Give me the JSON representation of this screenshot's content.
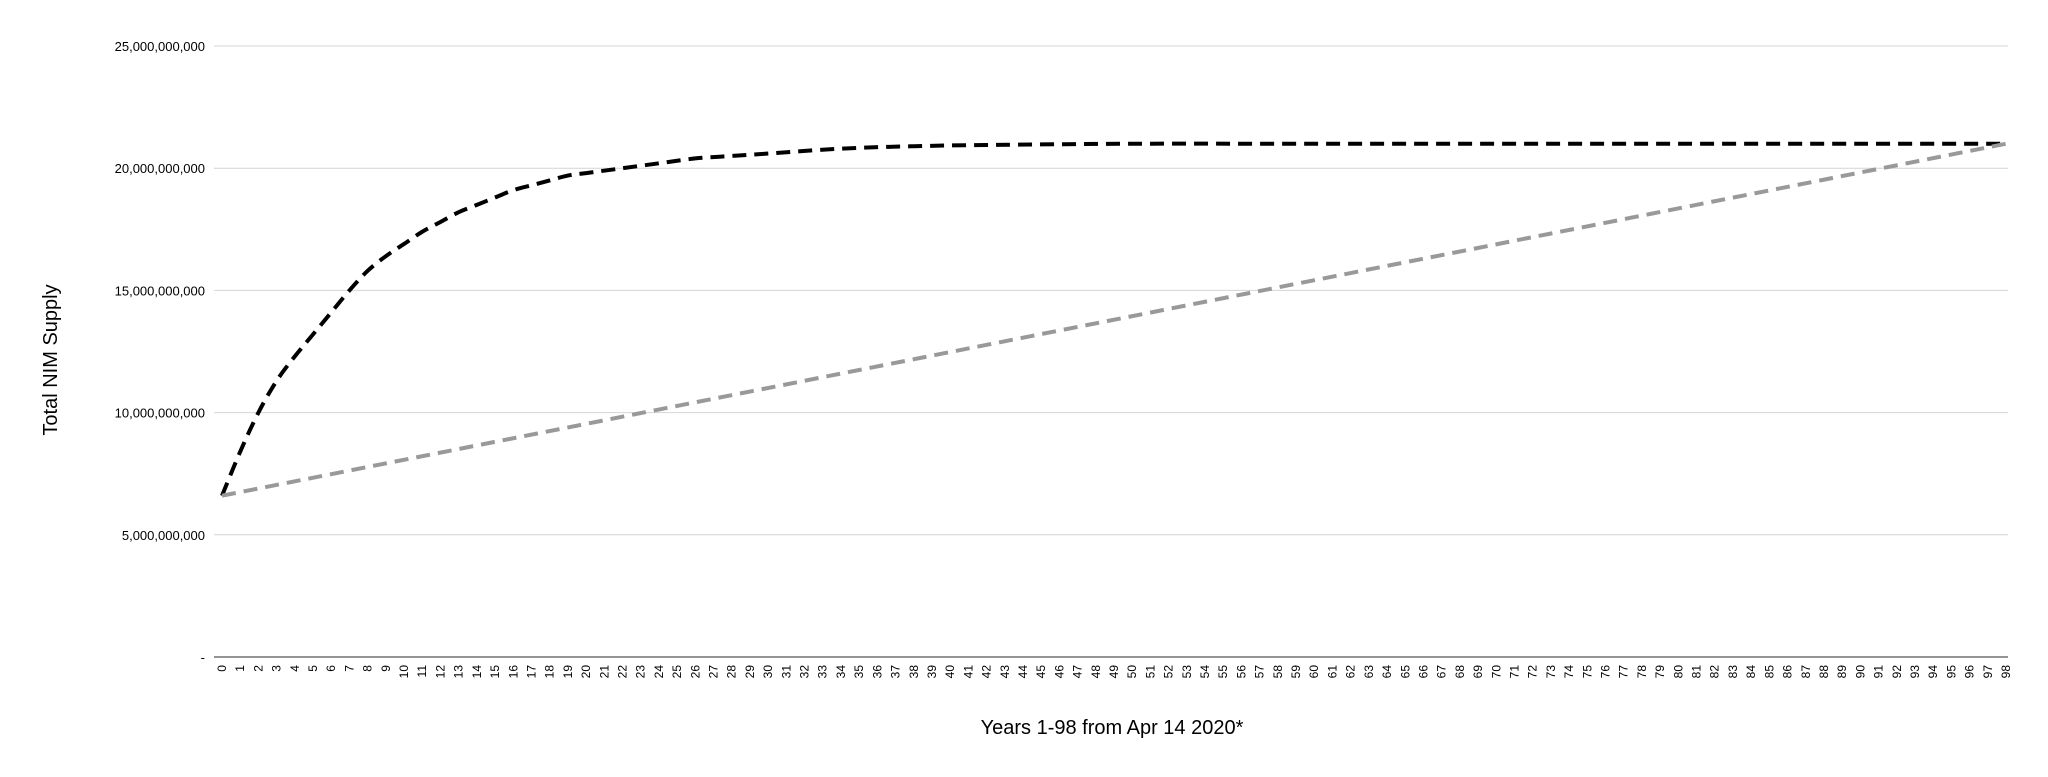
{
  "chart_data": {
    "type": "line",
    "title": "",
    "xlabel": "Years 1-98 from Apr 14 2020*",
    "ylabel": "Total NIM Supply",
    "ylim": [
      0,
      25000000000
    ],
    "y_ticks": [
      {
        "value": 0,
        "label": "-"
      },
      {
        "value": 5000000000,
        "label": "5,000,000,000"
      },
      {
        "value": 10000000000,
        "label": "10,000,000,000"
      },
      {
        "value": 15000000000,
        "label": "15,000,000,000"
      },
      {
        "value": 20000000000,
        "label": "20,000,000,000"
      },
      {
        "value": 25000000000,
        "label": "25,000,000,000"
      }
    ],
    "x_range": [
      0,
      98
    ],
    "grid": "horizontal",
    "legend": "none",
    "series": [
      {
        "color": "#000000",
        "style": "dashed",
        "points": [
          [
            0,
            6600000000
          ],
          [
            1,
            8400000000
          ],
          [
            2,
            10000000000
          ],
          [
            3,
            11300000000
          ],
          [
            4,
            12300000000
          ],
          [
            5,
            13200000000
          ],
          [
            6,
            14100000000
          ],
          [
            7,
            15000000000
          ],
          [
            8,
            15800000000
          ],
          [
            9,
            16400000000
          ],
          [
            10,
            16900000000
          ],
          [
            11,
            17400000000
          ],
          [
            12,
            17800000000
          ],
          [
            13,
            18200000000
          ],
          [
            14,
            18500000000
          ],
          [
            15,
            18800000000
          ],
          [
            16,
            19100000000
          ],
          [
            17,
            19300000000
          ],
          [
            18,
            19500000000
          ],
          [
            19,
            19700000000
          ],
          [
            20,
            19800000000
          ],
          [
            22,
            20000000000
          ],
          [
            24,
            20200000000
          ],
          [
            26,
            20400000000
          ],
          [
            28,
            20500000000
          ],
          [
            30,
            20600000000
          ],
          [
            34,
            20800000000
          ],
          [
            38,
            20900000000
          ],
          [
            42,
            20950000000
          ],
          [
            50,
            21000000000
          ],
          [
            60,
            21000000000
          ],
          [
            70,
            21000000000
          ],
          [
            80,
            21000000000
          ],
          [
            90,
            21000000000
          ],
          [
            98,
            21000000000
          ]
        ]
      },
      {
        "color": "#999999",
        "style": "dashed",
        "points": [
          [
            0,
            6600000000
          ],
          [
            98,
            21000000000
          ]
        ]
      }
    ]
  }
}
